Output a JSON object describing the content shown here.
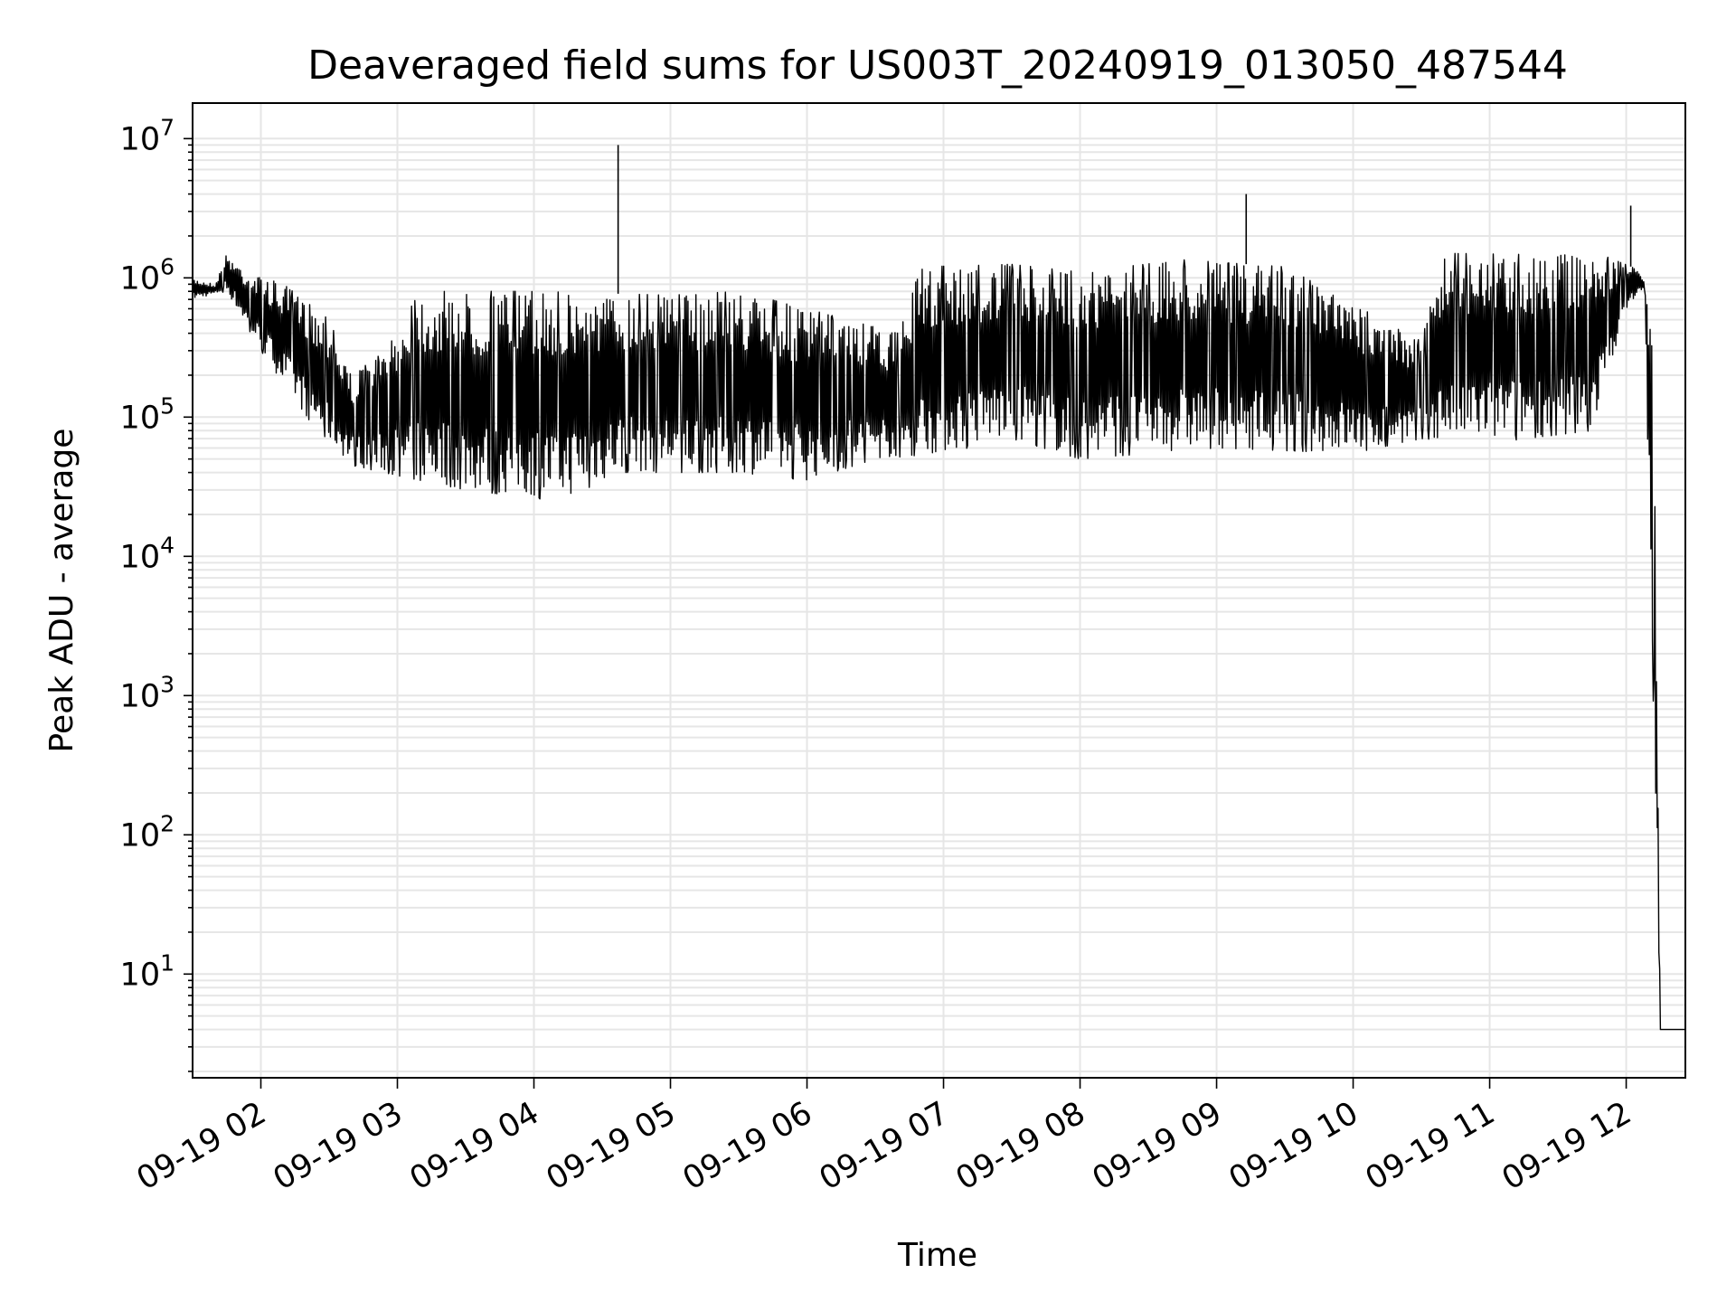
{
  "chart_data": {
    "type": "line",
    "title": "Deaveraged field sums for US003T_20240919_013050_487544",
    "xlabel": "Time",
    "ylabel": "Peak ADU - average",
    "yscale": "log",
    "ylim": [
      1.8,
      18000000
    ],
    "xlim": [
      "2024-09-19T01:30",
      "2024-09-19T12:26"
    ],
    "grid": true,
    "line_color": "#000000",
    "grid_color": "#e6e6e6",
    "x_ticks": [
      {
        "t": "2024-09-19T02:00",
        "label": "09-19 02"
      },
      {
        "t": "2024-09-19T03:00",
        "label": "09-19 03"
      },
      {
        "t": "2024-09-19T04:00",
        "label": "09-19 04"
      },
      {
        "t": "2024-09-19T05:00",
        "label": "09-19 05"
      },
      {
        "t": "2024-09-19T06:00",
        "label": "09-19 06"
      },
      {
        "t": "2024-09-19T07:00",
        "label": "09-19 07"
      },
      {
        "t": "2024-09-19T08:00",
        "label": "09-19 08"
      },
      {
        "t": "2024-09-19T09:00",
        "label": "09-19 09"
      },
      {
        "t": "2024-09-19T10:00",
        "label": "09-19 10"
      },
      {
        "t": "2024-09-19T11:00",
        "label": "09-19 11"
      },
      {
        "t": "2024-09-19T12:00",
        "label": "09-19 12"
      }
    ],
    "y_ticks": [
      {
        "value": 10,
        "base": "10",
        "exp": "1"
      },
      {
        "value": 100,
        "base": "10",
        "exp": "2"
      },
      {
        "value": 1000,
        "base": "10",
        "exp": "3"
      },
      {
        "value": 10000,
        "base": "10",
        "exp": "4"
      },
      {
        "value": 100000,
        "base": "10",
        "exp": "5"
      },
      {
        "value": 1000000,
        "base": "10",
        "exp": "6"
      },
      {
        "value": 10000000,
        "base": "10",
        "exp": "7"
      }
    ],
    "series": [
      {
        "upper_envelope": [
          [
            "2024-09-19T01:30",
            1000000
          ],
          [
            "2024-09-19T01:40",
            900000
          ],
          [
            "2024-09-19T01:45",
            1500000
          ],
          [
            "2024-09-19T01:55",
            1100000
          ],
          [
            "2024-09-19T02:10",
            900000
          ],
          [
            "2024-09-19T02:30",
            500000
          ],
          [
            "2024-09-19T02:40",
            200000
          ],
          [
            "2024-09-19T02:55",
            300000
          ],
          [
            "2024-09-19T03:10",
            800000
          ],
          [
            "2024-09-19T04:00",
            800000
          ],
          [
            "2024-09-19T05:00",
            750000
          ],
          [
            "2024-09-19T05:30",
            800000
          ],
          [
            "2024-09-19T06:00",
            600000
          ],
          [
            "2024-09-19T06:40",
            400000
          ],
          [
            "2024-09-19T06:50",
            1200000
          ],
          [
            "2024-09-19T07:30",
            1250000
          ],
          [
            "2024-09-19T08:00",
            1100000
          ],
          [
            "2024-09-19T08:45",
            1350000
          ],
          [
            "2024-09-19T09:30",
            1200000
          ],
          [
            "2024-09-19T10:30",
            350000
          ],
          [
            "2024-09-19T10:40",
            1500000
          ],
          [
            "2024-09-19T11:50",
            1450000
          ],
          [
            "2024-09-19T12:05",
            1150000
          ],
          [
            "2024-09-19T12:12",
            700000
          ],
          [
            "2024-09-19T12:15",
            4
          ],
          [
            "2024-09-19T12:26",
            4
          ]
        ],
        "lower_envelope": [
          [
            "2024-09-19T01:30",
            700000
          ],
          [
            "2024-09-19T01:45",
            800000
          ],
          [
            "2024-09-19T02:00",
            300000
          ],
          [
            "2024-09-19T02:20",
            100000
          ],
          [
            "2024-09-19T02:40",
            45000
          ],
          [
            "2024-09-19T03:00",
            38000
          ],
          [
            "2024-09-19T03:30",
            30000
          ],
          [
            "2024-09-19T04:10",
            25000
          ],
          [
            "2024-09-19T04:40",
            40000
          ],
          [
            "2024-09-19T05:30",
            40000
          ],
          [
            "2024-09-19T06:00",
            35000
          ],
          [
            "2024-09-19T06:30",
            50000
          ],
          [
            "2024-09-19T07:00",
            55000
          ],
          [
            "2024-09-19T07:30",
            70000
          ],
          [
            "2024-09-19T08:00",
            50000
          ],
          [
            "2024-09-19T09:00",
            60000
          ],
          [
            "2024-09-19T10:00",
            55000
          ],
          [
            "2024-09-19T10:30",
            70000
          ],
          [
            "2024-09-19T11:00",
            65000
          ],
          [
            "2024-09-19T11:45",
            80000
          ],
          [
            "2024-09-19T12:00",
            600000
          ],
          [
            "2024-09-19T12:08",
            850000
          ],
          [
            "2024-09-19T12:15",
            4
          ],
          [
            "2024-09-19T12:26",
            4
          ]
        ],
        "spikes": [
          [
            "2024-09-19T04:37",
            9000000
          ],
          [
            "2024-09-19T09:13",
            4000000
          ],
          [
            "2024-09-19T12:02",
            3300000
          ]
        ]
      }
    ]
  }
}
